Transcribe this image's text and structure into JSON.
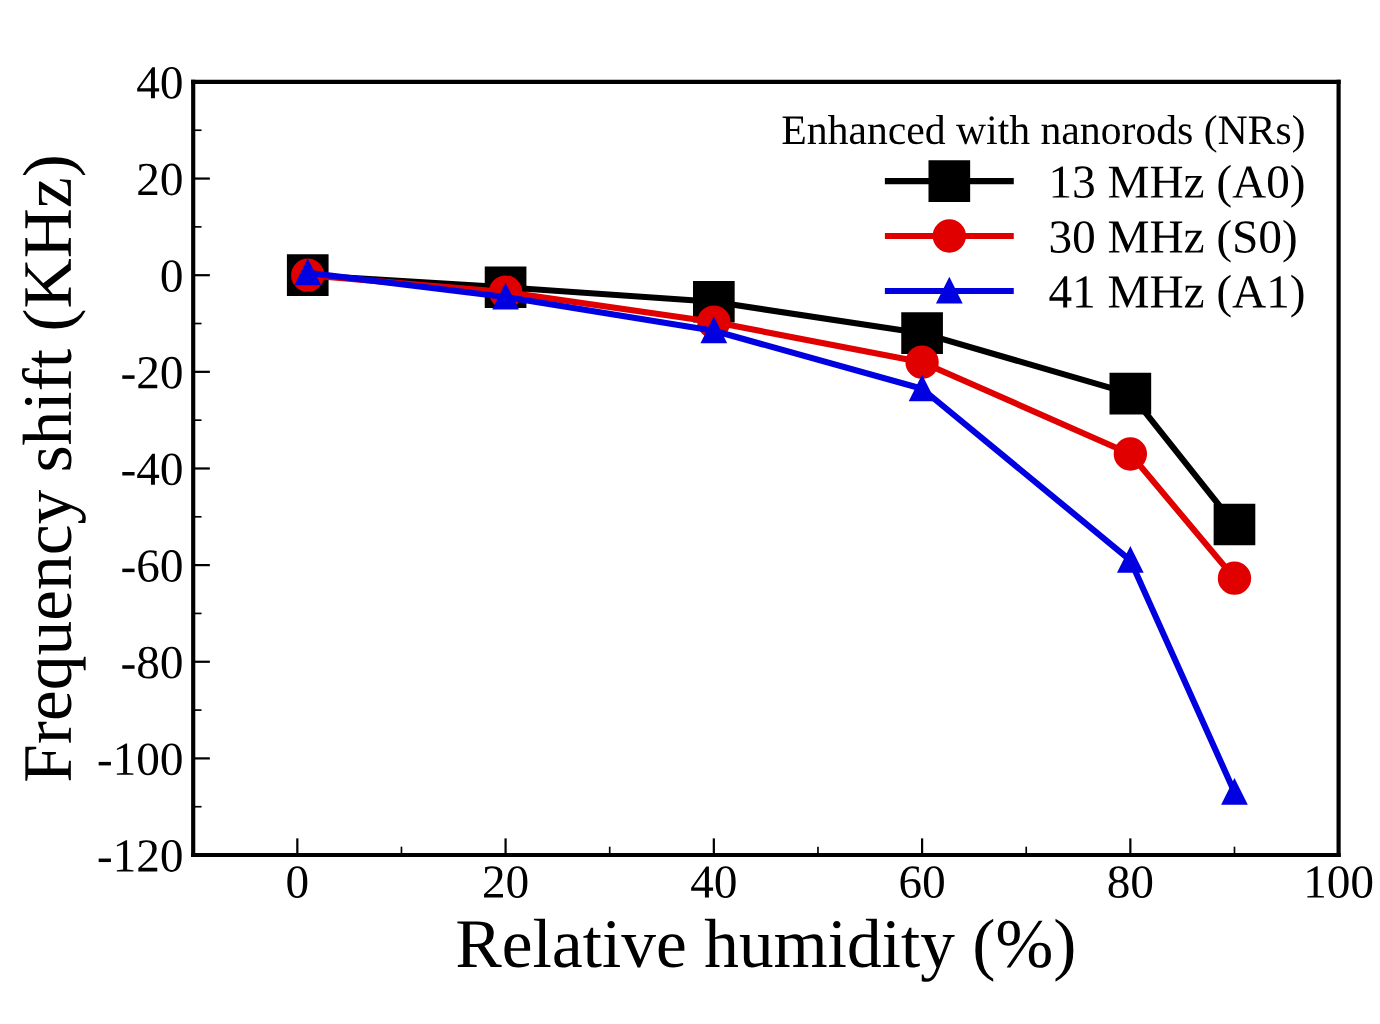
{
  "chart_data": {
    "type": "line",
    "xlabel": "Relative humidity (%)",
    "ylabel": "Frequency shift (KHz)",
    "legend_title": "Enhanced with nanorods (NRs)",
    "x": [
      1,
      20,
      40,
      60,
      80,
      90
    ],
    "series": [
      {
        "name": "13 MHz (A0)",
        "color": "#000000",
        "marker": "square",
        "values": [
          0,
          -2.5,
          -5.5,
          -12,
          -24.5,
          -51.6
        ]
      },
      {
        "name": "30 MHz (S0)",
        "color": "#e00000",
        "marker": "circle",
        "values": [
          0,
          -3.5,
          -9.7,
          -18,
          -37,
          -62.7
        ]
      },
      {
        "name": "41 MHz (A1)",
        "color": "#0000e0",
        "marker": "triangle",
        "values": [
          0.5,
          -4.5,
          -11.5,
          -23.5,
          -59,
          -107
        ]
      }
    ],
    "xlim": [
      -10,
      100
    ],
    "xticks": [
      0,
      20,
      40,
      60,
      80,
      100
    ],
    "ylim": [
      -120,
      40
    ],
    "yticks": [
      -120,
      -100,
      -80,
      -60,
      -40,
      -20,
      0,
      20,
      40
    ],
    "grid": false,
    "legend": "top right",
    "line_style": "solid"
  }
}
